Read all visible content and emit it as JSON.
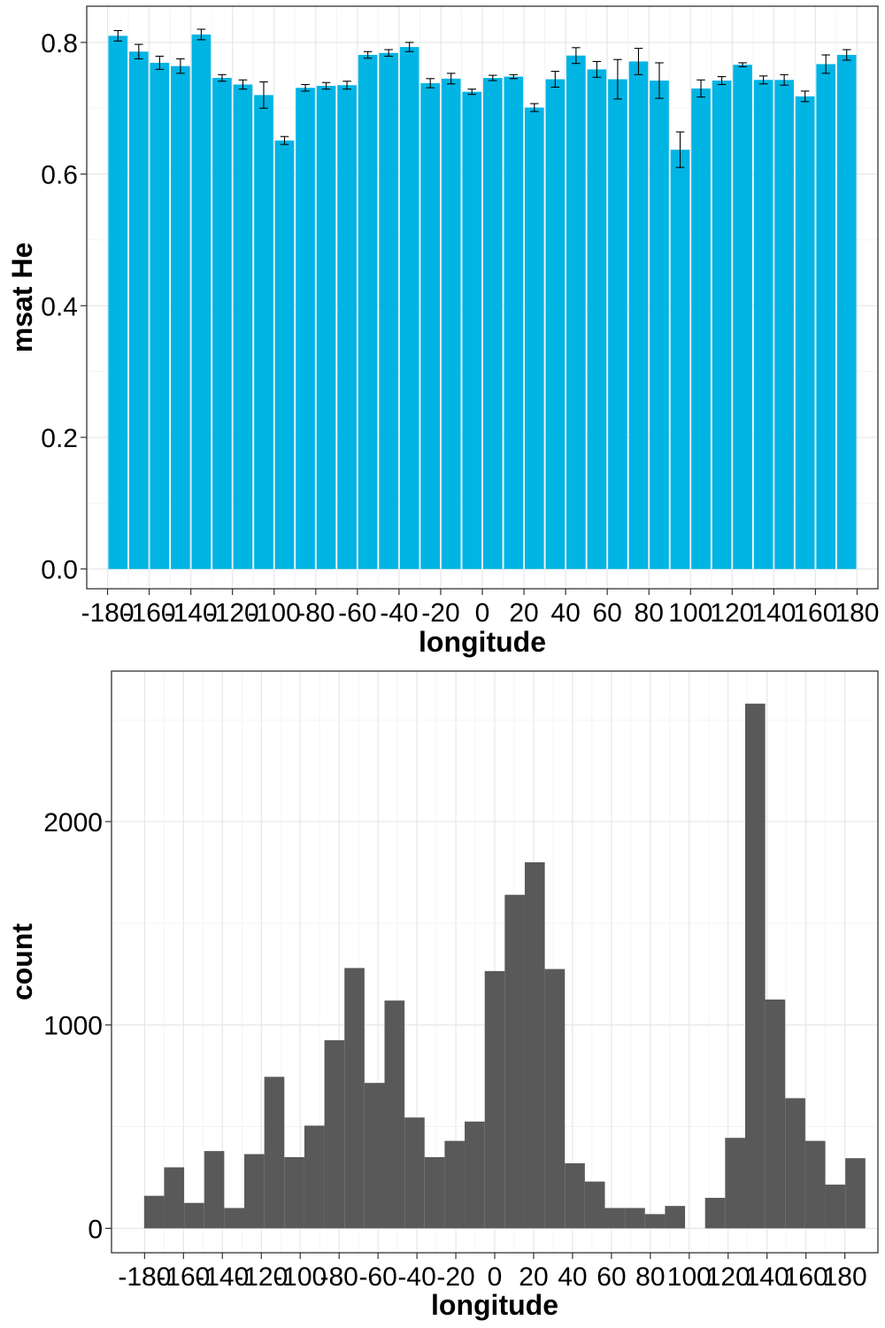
{
  "chart_data": [
    {
      "type": "bar",
      "xlabel": "longitude",
      "ylabel": "msat He",
      "bar_color": "#00b4e4",
      "xlim": [
        -190,
        190
      ],
      "ylim": [
        -0.03,
        0.855
      ],
      "xticks": [
        -180,
        -160,
        -140,
        -120,
        -100,
        -80,
        -60,
        -40,
        -20,
        0,
        20,
        40,
        60,
        80,
        100,
        120,
        140,
        160,
        180
      ],
      "yticks": [
        0.0,
        0.2,
        0.4,
        0.6,
        0.8
      ],
      "ytick_labels": [
        "0.0",
        "0.2",
        "0.4",
        "0.6",
        "0.8"
      ],
      "bar_width": 9.2,
      "bars": [
        {
          "x": -175,
          "y": 0.81,
          "err": 0.008
        },
        {
          "x": -165,
          "y": 0.786,
          "err": 0.011
        },
        {
          "x": -155,
          "y": 0.769,
          "err": 0.01
        },
        {
          "x": -145,
          "y": 0.764,
          "err": 0.011
        },
        {
          "x": -135,
          "y": 0.812,
          "err": 0.008
        },
        {
          "x": -125,
          "y": 0.746,
          "err": 0.005
        },
        {
          "x": -115,
          "y": 0.736,
          "err": 0.007
        },
        {
          "x": -105,
          "y": 0.72,
          "err": 0.02
        },
        {
          "x": -95,
          "y": 0.651,
          "err": 0.006
        },
        {
          "x": -85,
          "y": 0.731,
          "err": 0.005
        },
        {
          "x": -75,
          "y": 0.734,
          "err": 0.005
        },
        {
          "x": -65,
          "y": 0.735,
          "err": 0.006
        },
        {
          "x": -55,
          "y": 0.781,
          "err": 0.005
        },
        {
          "x": -45,
          "y": 0.784,
          "err": 0.005
        },
        {
          "x": -35,
          "y": 0.793,
          "err": 0.007
        },
        {
          "x": -25,
          "y": 0.738,
          "err": 0.007
        },
        {
          "x": -15,
          "y": 0.745,
          "err": 0.008
        },
        {
          "x": -5,
          "y": 0.725,
          "err": 0.004
        },
        {
          "x": 5,
          "y": 0.746,
          "err": 0.004
        },
        {
          "x": 15,
          "y": 0.748,
          "err": 0.003
        },
        {
          "x": 25,
          "y": 0.701,
          "err": 0.006
        },
        {
          "x": 35,
          "y": 0.744,
          "err": 0.012
        },
        {
          "x": 45,
          "y": 0.78,
          "err": 0.012
        },
        {
          "x": 55,
          "y": 0.759,
          "err": 0.012
        },
        {
          "x": 65,
          "y": 0.744,
          "err": 0.03
        },
        {
          "x": 75,
          "y": 0.771,
          "err": 0.02
        },
        {
          "x": 85,
          "y": 0.742,
          "err": 0.027
        },
        {
          "x": 95,
          "y": 0.637,
          "err": 0.027
        },
        {
          "x": 105,
          "y": 0.73,
          "err": 0.013
        },
        {
          "x": 115,
          "y": 0.742,
          "err": 0.006
        },
        {
          "x": 125,
          "y": 0.766,
          "err": 0.003
        },
        {
          "x": 135,
          "y": 0.743,
          "err": 0.006
        },
        {
          "x": 145,
          "y": 0.743,
          "err": 0.008
        },
        {
          "x": 155,
          "y": 0.718,
          "err": 0.008
        },
        {
          "x": 165,
          "y": 0.767,
          "err": 0.014
        },
        {
          "x": 175,
          "y": 0.781,
          "err": 0.008
        }
      ]
    },
    {
      "type": "histogram",
      "xlabel": "longitude",
      "ylabel": "count",
      "bar_color": "#595959",
      "xlim": [
        -197,
        197
      ],
      "ylim": [
        -120,
        2740
      ],
      "xticks": [
        -180,
        -160,
        -140,
        -120,
        -100,
        -80,
        -60,
        -40,
        -20,
        0,
        20,
        40,
        60,
        80,
        100,
        120,
        140,
        160,
        180
      ],
      "yticks": [
        0,
        1000,
        2000
      ],
      "ytick_labels": [
        "0",
        "1000",
        "2000"
      ],
      "bin_width": 10.3,
      "bins": [
        {
          "x": -175.1,
          "count": 160
        },
        {
          "x": -164.8,
          "count": 300
        },
        {
          "x": -154.5,
          "count": 125
        },
        {
          "x": -144.2,
          "count": 380
        },
        {
          "x": -133.9,
          "count": 100
        },
        {
          "x": -123.6,
          "count": 365
        },
        {
          "x": -113.3,
          "count": 745
        },
        {
          "x": -103.0,
          "count": 350
        },
        {
          "x": -92.7,
          "count": 505
        },
        {
          "x": -82.4,
          "count": 925
        },
        {
          "x": -72.1,
          "count": 1280
        },
        {
          "x": -61.8,
          "count": 715
        },
        {
          "x": -51.5,
          "count": 1120
        },
        {
          "x": -41.2,
          "count": 545
        },
        {
          "x": -30.9,
          "count": 350
        },
        {
          "x": -20.6,
          "count": 430
        },
        {
          "x": -10.3,
          "count": 525
        },
        {
          "x": 0.0,
          "count": 1265
        },
        {
          "x": 10.3,
          "count": 1640
        },
        {
          "x": 20.6,
          "count": 1800
        },
        {
          "x": 30.9,
          "count": 1275
        },
        {
          "x": 41.2,
          "count": 320
        },
        {
          "x": 51.5,
          "count": 230
        },
        {
          "x": 61.8,
          "count": 100
        },
        {
          "x": 72.1,
          "count": 100
        },
        {
          "x": 82.4,
          "count": 70
        },
        {
          "x": 92.7,
          "count": 110
        },
        {
          "x": 103.0,
          "count": 0
        },
        {
          "x": 113.3,
          "count": 150
        },
        {
          "x": 123.6,
          "count": 445
        },
        {
          "x": 133.9,
          "count": 2580
        },
        {
          "x": 144.2,
          "count": 1125
        },
        {
          "x": 154.5,
          "count": 640
        },
        {
          "x": 164.8,
          "count": 430
        },
        {
          "x": 175.1,
          "count": 215
        },
        {
          "x": 185.4,
          "count": 345
        }
      ]
    }
  ]
}
